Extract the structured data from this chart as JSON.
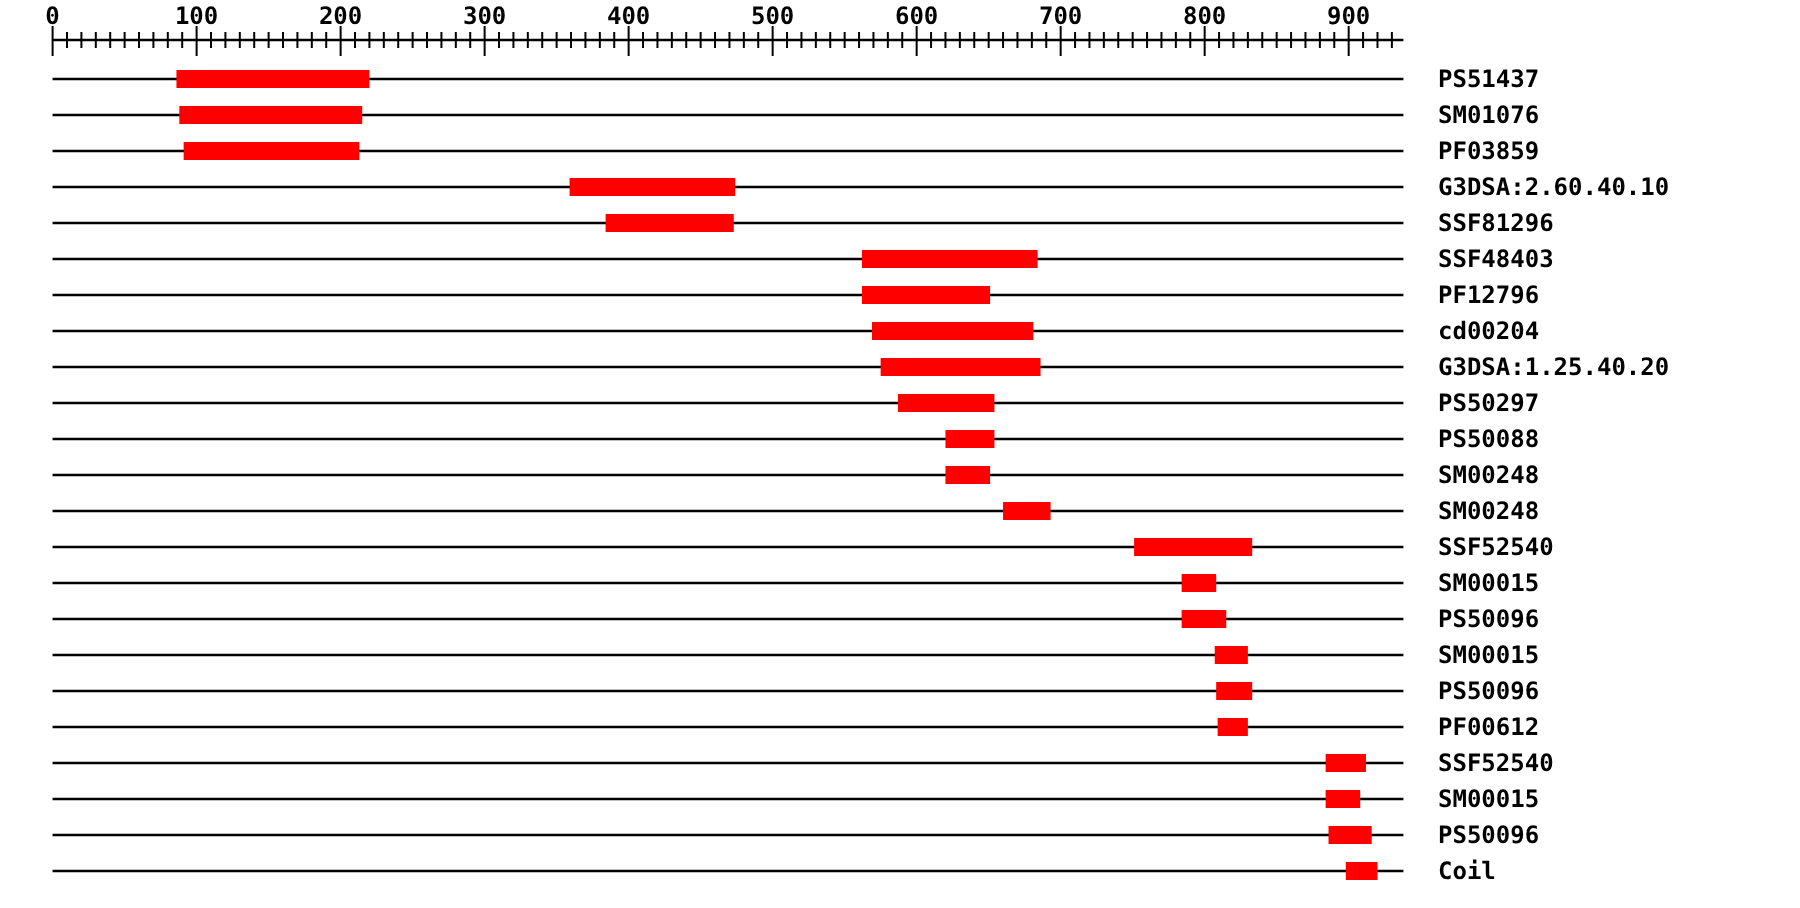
{
  "chart_data": {
    "type": "bar",
    "orientation": "horizontal",
    "grid": "y",
    "categories": [
      "PS51437",
      "SM01076",
      "PF03859",
      "G3DSA:2.60.40.10",
      "SSF81296",
      "SSF48403",
      "PF12796",
      "cd00204",
      "G3DSA:1.25.40.20",
      "PS50297",
      "PS50088",
      "SM00248",
      "SM00248",
      "SSF52540",
      "SM00015",
      "PS50096",
      "SM00015",
      "PS50096",
      "PF00612",
      "SSF52540",
      "SM00015",
      "PS50096",
      "Coil"
    ],
    "base": [
      86,
      88,
      91,
      359,
      384,
      562,
      562,
      569,
      575,
      587,
      620,
      620,
      660,
      751,
      784,
      784,
      807,
      808,
      809,
      884,
      884,
      886,
      898
    ],
    "values": [
      134,
      127,
      122,
      115,
      89,
      122,
      89,
      112,
      111,
      67,
      34,
      31,
      33,
      82,
      24,
      31,
      23,
      25,
      21,
      28,
      24,
      30,
      22
    ],
    "color": "#ff0000",
    "xlim": [
      0,
      938
    ],
    "xticks": [
      0,
      {
        "value": 10,
        "label": null
      },
      {
        "value": 20,
        "label": null
      },
      {
        "value": 30,
        "label": null
      },
      {
        "value": 40,
        "label": null
      },
      {
        "value": 50,
        "label": null
      },
      {
        "value": 60,
        "label": null
      },
      {
        "value": 70,
        "label": null
      },
      {
        "value": 80,
        "label": null
      },
      {
        "value": 90,
        "label": null
      },
      100,
      {
        "value": 110,
        "label": null
      },
      {
        "value": 120,
        "label": null
      },
      {
        "value": 130,
        "label": null
      },
      {
        "value": 140,
        "label": null
      },
      {
        "value": 150,
        "label": null
      },
      {
        "value": 160,
        "label": null
      },
      {
        "value": 170,
        "label": null
      },
      {
        "value": 180,
        "label": null
      },
      {
        "value": 190,
        "label": null
      },
      200,
      {
        "value": 210,
        "label": null
      },
      {
        "value": 220,
        "label": null
      },
      {
        "value": 230,
        "label": null
      },
      {
        "value": 240,
        "label": null
      },
      {
        "value": 250,
        "label": null
      },
      {
        "value": 260,
        "label": null
      },
      {
        "value": 270,
        "label": null
      },
      {
        "value": 280,
        "label": null
      },
      {
        "value": 290,
        "label": null
      },
      300,
      {
        "value": 310,
        "label": null
      },
      {
        "value": 320,
        "label": null
      },
      {
        "value": 330,
        "label": null
      },
      {
        "value": 340,
        "label": null
      },
      {
        "value": 350,
        "label": null
      },
      {
        "value": 360,
        "label": null
      },
      {
        "value": 370,
        "label": null
      },
      {
        "value": 380,
        "label": null
      },
      {
        "value": 390,
        "label": null
      },
      400,
      {
        "value": 410,
        "label": null
      },
      {
        "value": 420,
        "label": null
      },
      {
        "value": 430,
        "label": null
      },
      {
        "value": 440,
        "label": null
      },
      {
        "value": 450,
        "label": null
      },
      {
        "value": 460,
        "label": null
      },
      {
        "value": 470,
        "label": null
      },
      {
        "value": 480,
        "label": null
      },
      {
        "value": 490,
        "label": null
      },
      500,
      {
        "value": 510,
        "label": null
      },
      {
        "value": 520,
        "label": null
      },
      {
        "value": 530,
        "label": null
      },
      {
        "value": 540,
        "label": null
      },
      {
        "value": 550,
        "label": null
      },
      {
        "value": 560,
        "label": null
      },
      {
        "value": 570,
        "label": null
      },
      {
        "value": 580,
        "label": null
      },
      {
        "value": 590,
        "label": null
      },
      600,
      {
        "value": 610,
        "label": null
      },
      {
        "value": 620,
        "label": null
      },
      {
        "value": 630,
        "label": null
      },
      {
        "value": 640,
        "label": null
      },
      {
        "value": 650,
        "label": null
      },
      {
        "value": 660,
        "label": null
      },
      {
        "value": 670,
        "label": null
      },
      {
        "value": 680,
        "label": null
      },
      {
        "value": 690,
        "label": null
      },
      700,
      {
        "value": 710,
        "label": null
      },
      {
        "value": 720,
        "label": null
      },
      {
        "value": 730,
        "label": null
      },
      {
        "value": 740,
        "label": null
      },
      {
        "value": 750,
        "label": null
      },
      {
        "value": 760,
        "label": null
      },
      {
        "value": 770,
        "label": null
      },
      {
        "value": 780,
        "label": null
      },
      {
        "value": 790,
        "label": null
      },
      800,
      {
        "value": 810,
        "label": null
      },
      {
        "value": 820,
        "label": null
      },
      {
        "value": 830,
        "label": null
      },
      {
        "value": 840,
        "label": null
      },
      {
        "value": 850,
        "label": null
      },
      {
        "value": 860,
        "label": null
      },
      {
        "value": 870,
        "label": null
      },
      {
        "value": 880,
        "label": null
      },
      {
        "value": 890,
        "label": null
      },
      900,
      {
        "value": 910,
        "label": null
      },
      {
        "value": 920,
        "label": null
      },
      {
        "value": 930,
        "label": null
      }
    ]
  }
}
